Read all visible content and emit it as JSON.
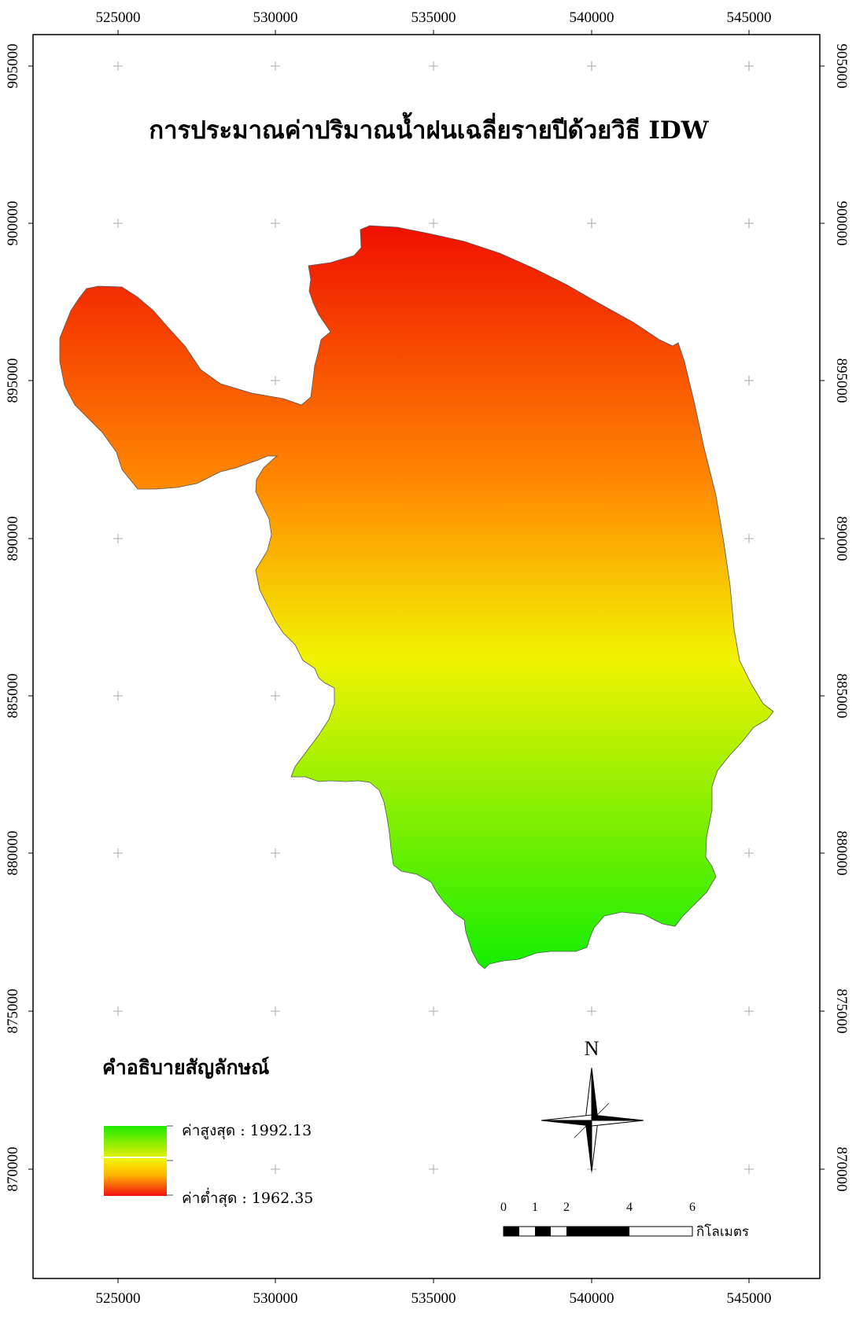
{
  "title": "การประมาณค่าปริมาณน้ำฝนเฉลี่ยรายปีด้วยวิธี IDW",
  "x_ticks": [
    "525000",
    "530000",
    "535000",
    "540000",
    "545000"
  ],
  "y_ticks": [
    "905000",
    "900000",
    "895000",
    "890000",
    "885000",
    "880000",
    "875000",
    "870000"
  ],
  "legend": {
    "title": "คำอธิบายสัญลักษณ์",
    "high_label": "ค่าสูงสุด : 1992.13",
    "low_label": "ค่าต่ำสุด : 1962.35",
    "high_value": 1992.13,
    "low_value": 1962.35,
    "high_color": "#1ee800",
    "mid_color": "#f2f200",
    "low_color": "#f01010"
  },
  "north_label": "N",
  "scalebar": {
    "labels": [
      "0",
      "1",
      "2",
      "4",
      "6"
    ],
    "unit": "กิโลเมตร"
  },
  "colors": {
    "ramp_red": "#ee1a00",
    "ramp_orange": "#ff8800",
    "ramp_yellow": "#f2f200",
    "ramp_green": "#14ee00"
  }
}
